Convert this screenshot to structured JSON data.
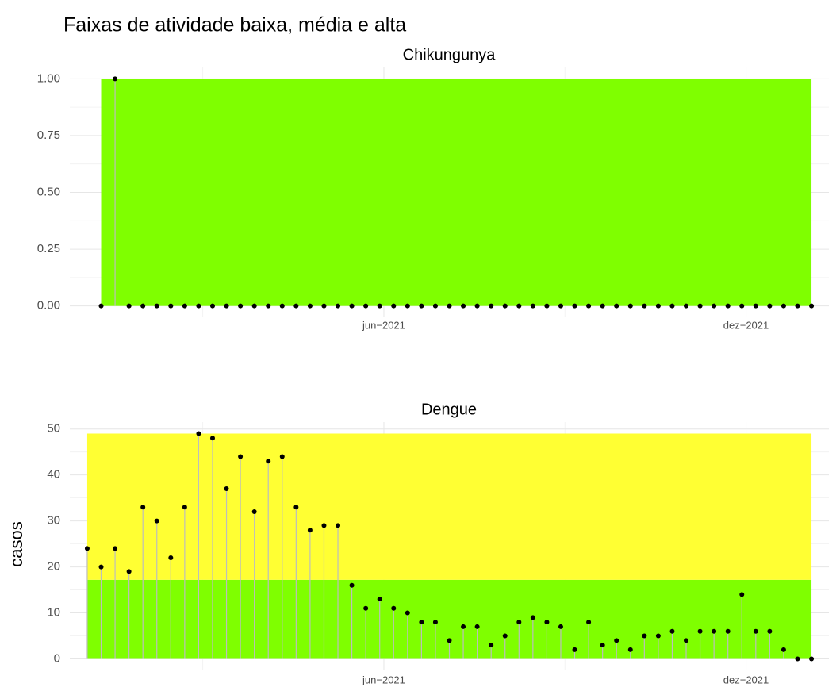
{
  "title": "Faixas de atividade baixa, média e alta",
  "y_label": "casos",
  "chart_data": [
    {
      "type": "lollipop",
      "title": "Chikungunya",
      "x": [
        1,
        2,
        3,
        4,
        5,
        6,
        7,
        8,
        9,
        10,
        11,
        12,
        13,
        14,
        15,
        16,
        17,
        18,
        19,
        20,
        21,
        22,
        23,
        24,
        25,
        26,
        27,
        28,
        29,
        30,
        31,
        32,
        33,
        34,
        35,
        36,
        37,
        38,
        39,
        40,
        41,
        42,
        43,
        44,
        45,
        46,
        47,
        48,
        49,
        50,
        51,
        52
      ],
      "values": [
        0,
        1,
        0,
        0,
        0,
        0,
        0,
        0,
        0,
        0,
        0,
        0,
        0,
        0,
        0,
        0,
        0,
        0,
        0,
        0,
        0,
        0,
        0,
        0,
        0,
        0,
        0,
        0,
        0,
        0,
        0,
        0,
        0,
        0,
        0,
        0,
        0,
        0,
        0,
        0,
        0,
        0,
        0,
        0,
        0,
        0,
        0,
        0,
        0,
        0,
        0,
        0
      ],
      "bands": [
        {
          "from": 0,
          "to": 1,
          "color": "#7fff00"
        }
      ],
      "xlim": [
        -1.25,
        53.25
      ],
      "xticks": [
        {
          "value": 21.3,
          "label": "jun−2021"
        },
        {
          "value": 47.3,
          "label": "dez−2021"
        }
      ],
      "ylim": [
        -0.05,
        1.05
      ],
      "yticks": [
        {
          "value": 0,
          "label": "0.00"
        },
        {
          "value": 0.25,
          "label": "0.25"
        },
        {
          "value": 0.5,
          "label": "0.50"
        },
        {
          "value": 0.75,
          "label": "0.75"
        },
        {
          "value": 1,
          "label": "1.00"
        }
      ],
      "grid": true,
      "color": "#000000",
      "stem_color": "#bdbdbd"
    },
    {
      "type": "lollipop",
      "title": "Dengue",
      "x": [
        0,
        1,
        2,
        3,
        4,
        5,
        6,
        7,
        8,
        9,
        10,
        11,
        12,
        13,
        14,
        15,
        16,
        17,
        18,
        19,
        20,
        21,
        22,
        23,
        24,
        25,
        26,
        27,
        28,
        29,
        30,
        31,
        32,
        33,
        34,
        35,
        36,
        37,
        38,
        39,
        40,
        41,
        42,
        43,
        44,
        45,
        46,
        47,
        48,
        49,
        50,
        51,
        52
      ],
      "values": [
        24,
        20,
        24,
        19,
        33,
        30,
        22,
        33,
        49,
        48,
        37,
        44,
        32,
        43,
        44,
        33,
        28,
        29,
        29,
        16,
        11,
        13,
        11,
        10,
        8,
        8,
        4,
        7,
        7,
        3,
        5,
        8,
        9,
        8,
        7,
        2,
        8,
        3,
        4,
        2,
        5,
        5,
        6,
        4,
        6,
        6,
        6,
        14,
        6,
        6,
        2,
        0,
        0
      ],
      "bands": [
        {
          "from": 0,
          "to": 17.2,
          "color": "#7fff00"
        },
        {
          "from": 17.2,
          "to": 49,
          "color": "#ffff33"
        }
      ],
      "xlim": [
        -1.25,
        53.25
      ],
      "xticks": [
        {
          "value": 21.3,
          "label": "jun−2021"
        },
        {
          "value": 47.3,
          "label": "dez−2021"
        }
      ],
      "ylim": [
        -2.5,
        51.5
      ],
      "yticks": [
        0,
        10,
        20,
        30,
        40,
        50
      ],
      "grid": true,
      "color": "#000000",
      "stem_color": "#bdbdbd"
    }
  ]
}
